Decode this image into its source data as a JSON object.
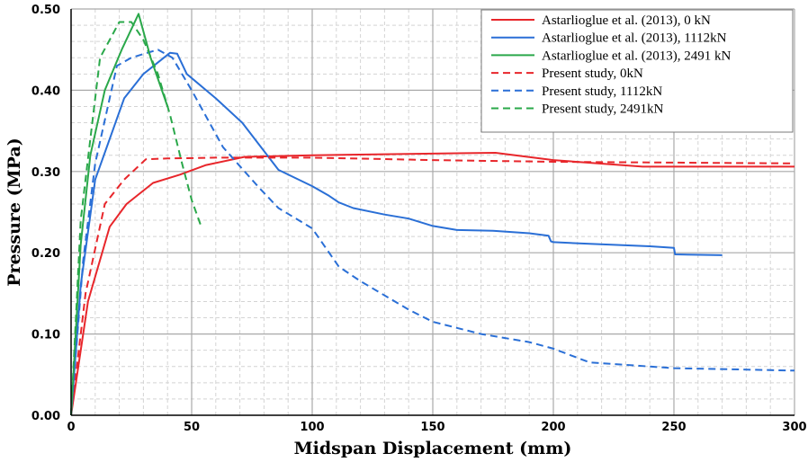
{
  "chart_data": {
    "type": "line",
    "xlabel": "Midspan Displacement (mm)",
    "ylabel": "Pressure (MPa)",
    "xlim": [
      0,
      300
    ],
    "ylim": [
      0,
      0.5
    ],
    "x_ticks": [
      0,
      50,
      100,
      150,
      200,
      250,
      300
    ],
    "y_ticks": [
      0.0,
      0.1,
      0.2,
      0.3,
      0.4,
      0.5
    ],
    "x_tick_labels": [
      "0",
      "50",
      "100",
      "150",
      "200",
      "250",
      "300"
    ],
    "y_tick_labels": [
      "0.00",
      "0.10",
      "0.20",
      "0.30",
      "0.40",
      "0.50"
    ],
    "grid": true,
    "minor_grid": true,
    "legend_position": "top-right",
    "series": [
      {
        "name": "Astarlioglue et al. (2013), 0 kN",
        "color": "#e8262b",
        "dash": "solid",
        "x": [
          0,
          7,
          16,
          23,
          34,
          45,
          56,
          72,
          100,
          150,
          176,
          200,
          237,
          300
        ],
        "y": [
          0,
          0.14,
          0.232,
          0.26,
          0.286,
          0.296,
          0.308,
          0.318,
          0.32,
          0.322,
          0.323,
          0.314,
          0.306,
          0.306
        ]
      },
      {
        "name": "Astarlioglue et al. (2013), 1112kN",
        "color": "#2a6fd6",
        "dash": "solid",
        "x": [
          0,
          4,
          10,
          22,
          30,
          41,
          44,
          48,
          60,
          71,
          86,
          100,
          107,
          111,
          117,
          130,
          140,
          150,
          160,
          175,
          190,
          198,
          199,
          200,
          215,
          240,
          250,
          250.5,
          270
        ],
        "y": [
          0,
          0.16,
          0.29,
          0.39,
          0.42,
          0.446,
          0.445,
          0.42,
          0.39,
          0.36,
          0.302,
          0.282,
          0.27,
          0.262,
          0.255,
          0.247,
          0.242,
          0.233,
          0.228,
          0.227,
          0.224,
          0.221,
          0.214,
          0.213,
          0.211,
          0.208,
          0.206,
          0.198,
          0.197
        ]
      },
      {
        "name": "Astarlioglue et al. (2013), 2491 kN",
        "color": "#2aa84a",
        "dash": "solid",
        "x": [
          0,
          4,
          8,
          14,
          21,
          28,
          33,
          40
        ],
        "y": [
          0,
          0.21,
          0.32,
          0.4,
          0.45,
          0.494,
          0.44,
          0.38
        ]
      },
      {
        "name": "Present study, 0kN",
        "color": "#e8262b",
        "dash": "dashed",
        "x": [
          0,
          6,
          14,
          22,
          31,
          40,
          60,
          100,
          150,
          200,
          250,
          300
        ],
        "y": [
          0,
          0.15,
          0.26,
          0.29,
          0.315,
          0.316,
          0.317,
          0.317,
          0.314,
          0.312,
          0.311,
          0.31
        ]
      },
      {
        "name": "Present study, 1112kN",
        "color": "#2a6fd6",
        "dash": "dashed",
        "x": [
          0,
          5,
          10,
          19,
          25,
          36,
          42,
          50,
          63,
          78,
          86,
          100,
          111,
          120,
          140,
          150,
          170,
          190,
          200,
          215,
          250,
          300
        ],
        "y": [
          0,
          0.19,
          0.31,
          0.43,
          0.44,
          0.45,
          0.44,
          0.4,
          0.33,
          0.28,
          0.255,
          0.23,
          0.183,
          0.165,
          0.13,
          0.115,
          0.1,
          0.09,
          0.082,
          0.065,
          0.058,
          0.055
        ]
      },
      {
        "name": "Present study, 2491kN",
        "color": "#2aa84a",
        "dash": "dashed",
        "x": [
          0,
          4,
          8,
          12,
          20,
          25,
          30,
          36,
          41,
          46,
          50,
          54
        ],
        "y": [
          0,
          0.24,
          0.34,
          0.44,
          0.484,
          0.484,
          0.462,
          0.42,
          0.37,
          0.31,
          0.265,
          0.232
        ]
      }
    ]
  }
}
